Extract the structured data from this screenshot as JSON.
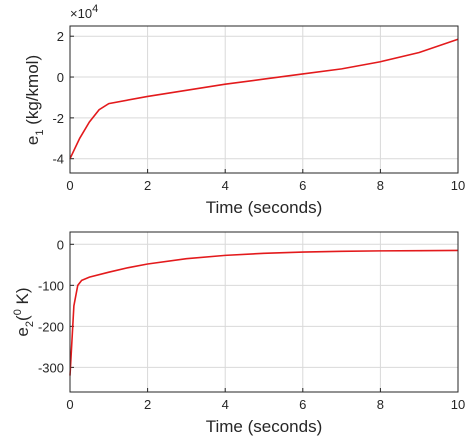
{
  "chart_data": [
    {
      "type": "line",
      "ylabel": [
        "e",
        "1",
        " (kg/kmol)"
      ],
      "xlabel": "Time (seconds)",
      "y_multiplier": [
        "×10",
        "4"
      ],
      "x": [
        0,
        0.25,
        0.5,
        0.75,
        1,
        2,
        3,
        4,
        5,
        6,
        7,
        8,
        9,
        10
      ],
      "series": [
        {
          "color": "#e31a1c",
          "values": [
            -4,
            -3,
            -2.2,
            -1.6,
            -1.3,
            -0.95,
            -0.65,
            -0.35,
            -0.1,
            0.15,
            0.4,
            0.75,
            1.2,
            1.85
          ]
        }
      ],
      "xlim": [
        0,
        10
      ],
      "xticks": [
        0,
        2,
        4,
        6,
        8,
        10
      ],
      "ylim": [
        -4.7,
        2.5
      ],
      "yticks": [
        -4,
        -2,
        0,
        2
      ],
      "grid": true
    },
    {
      "type": "line",
      "ylabel": [
        "e",
        "2",
        "(",
        "0",
        " K)"
      ],
      "xlabel": "Time (seconds)",
      "x": [
        0,
        0.1,
        0.2,
        0.3,
        0.5,
        1,
        1.5,
        2,
        3,
        4,
        5,
        6,
        7,
        8,
        9,
        10
      ],
      "series": [
        {
          "color": "#e31a1c",
          "values": [
            -320,
            -150,
            -100,
            -88,
            -80,
            -68,
            -57,
            -48,
            -35,
            -27,
            -22,
            -19,
            -17,
            -16,
            -15.5,
            -15
          ]
        }
      ],
      "xlim": [
        0,
        10
      ],
      "xticks": [
        0,
        2,
        4,
        6,
        8,
        10
      ],
      "ylim": [
        -360,
        30
      ],
      "yticks": [
        -300,
        -200,
        -100,
        0
      ],
      "grid": true
    }
  ]
}
